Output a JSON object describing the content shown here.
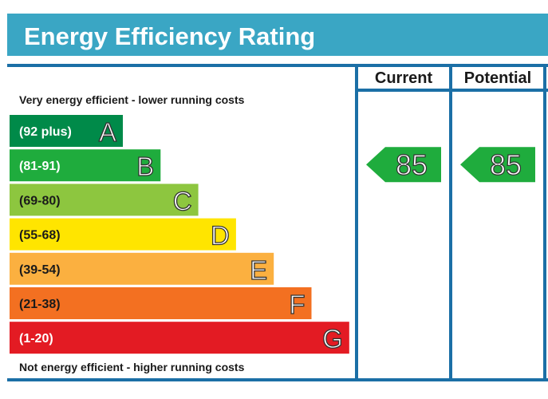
{
  "header": {
    "title": "Energy Efficiency Rating"
  },
  "columns": {
    "current": "Current",
    "potential": "Potential"
  },
  "scale": {
    "top_note": "Very energy efficient - lower running costs",
    "bottom_note": "Not energy efficient - higher running costs"
  },
  "colors": {
    "header_band": "#3aa6c4",
    "frame": "#1b6fa6",
    "A": "#008a49",
    "B": "#1fac3d",
    "C": "#8dc63f",
    "D": "#ffe500",
    "E": "#fbb040",
    "F": "#f37021",
    "G": "#e31b23",
    "arrow": "#1fac3d"
  },
  "chart_data": {
    "type": "bar",
    "bands": [
      {
        "letter": "A",
        "range": "(92 plus)"
      },
      {
        "letter": "B",
        "range": "(81-91)"
      },
      {
        "letter": "C",
        "range": "(69-80)"
      },
      {
        "letter": "D",
        "range": "(55-68)"
      },
      {
        "letter": "E",
        "range": "(39-54)"
      },
      {
        "letter": "F",
        "range": "(21-38)"
      },
      {
        "letter": "G",
        "range": "(1-20)"
      }
    ],
    "current_rating": 85,
    "potential_rating": 85,
    "current_band": "B",
    "potential_band": "B"
  }
}
